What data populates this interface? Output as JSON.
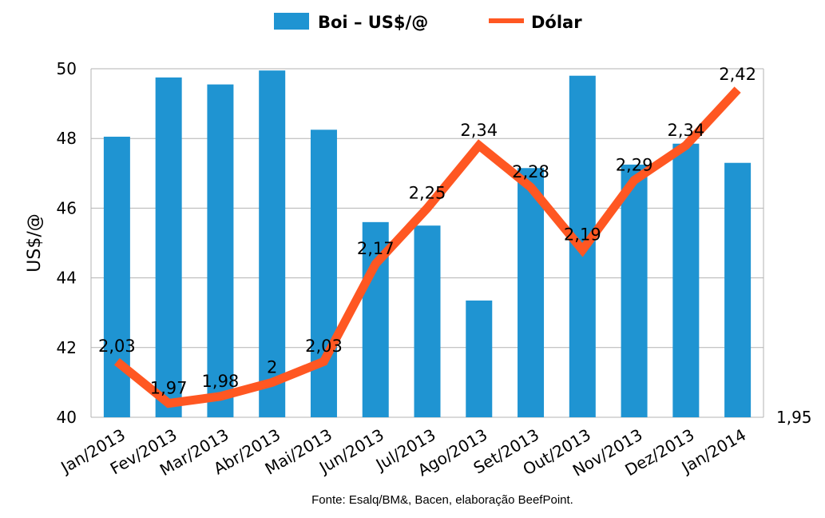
{
  "chart_data": {
    "type": "bar",
    "title": "",
    "categories": [
      "Jan/2013",
      "Fev/2013",
      "Mar/2013",
      "Abr/2013",
      "Mai/2013",
      "Jun/2013",
      "Jul/2013",
      "Ago/2013",
      "Set/2013",
      "Out/2013",
      "Nov/2013",
      "Dez/2013",
      "Jan/2014"
    ],
    "series": [
      {
        "name": "Boi – US$/@",
        "type": "bar",
        "axis": "left",
        "color": "#1f94d2",
        "values": [
          48.05,
          49.75,
          49.55,
          49.95,
          48.25,
          45.6,
          45.5,
          43.35,
          47.15,
          49.8,
          47.25,
          47.85,
          47.3
        ]
      },
      {
        "name": "Dólar",
        "type": "line",
        "axis": "right",
        "color": "#ff5722",
        "values": [
          2.03,
          1.97,
          1.98,
          2,
          2.03,
          2.17,
          2.25,
          2.34,
          2.28,
          2.19,
          2.29,
          2.34,
          2.42
        ],
        "labels": [
          "2,03",
          "1,97",
          "1,98",
          "2",
          "2,03",
          "2,17",
          "2,25",
          "2,34",
          "2,28",
          "2,19",
          "2,29",
          "2,34",
          "2,42"
        ]
      }
    ],
    "ylabel": "US$/@",
    "ylim": [
      40,
      50
    ],
    "yticks": [
      "40",
      "42",
      "44",
      "46",
      "48",
      "50"
    ],
    "ytick_values": [
      40,
      42,
      44,
      46,
      48,
      50
    ],
    "y2lim": [
      1.95,
      2.45
    ],
    "y2ticks": [
      "1,95"
    ],
    "y2tick_values": [
      1.95
    ],
    "grid": true,
    "legend": "top-center",
    "source": "Fonte: Esalq/BM&, Bacen, elaboração BeefPoint."
  }
}
